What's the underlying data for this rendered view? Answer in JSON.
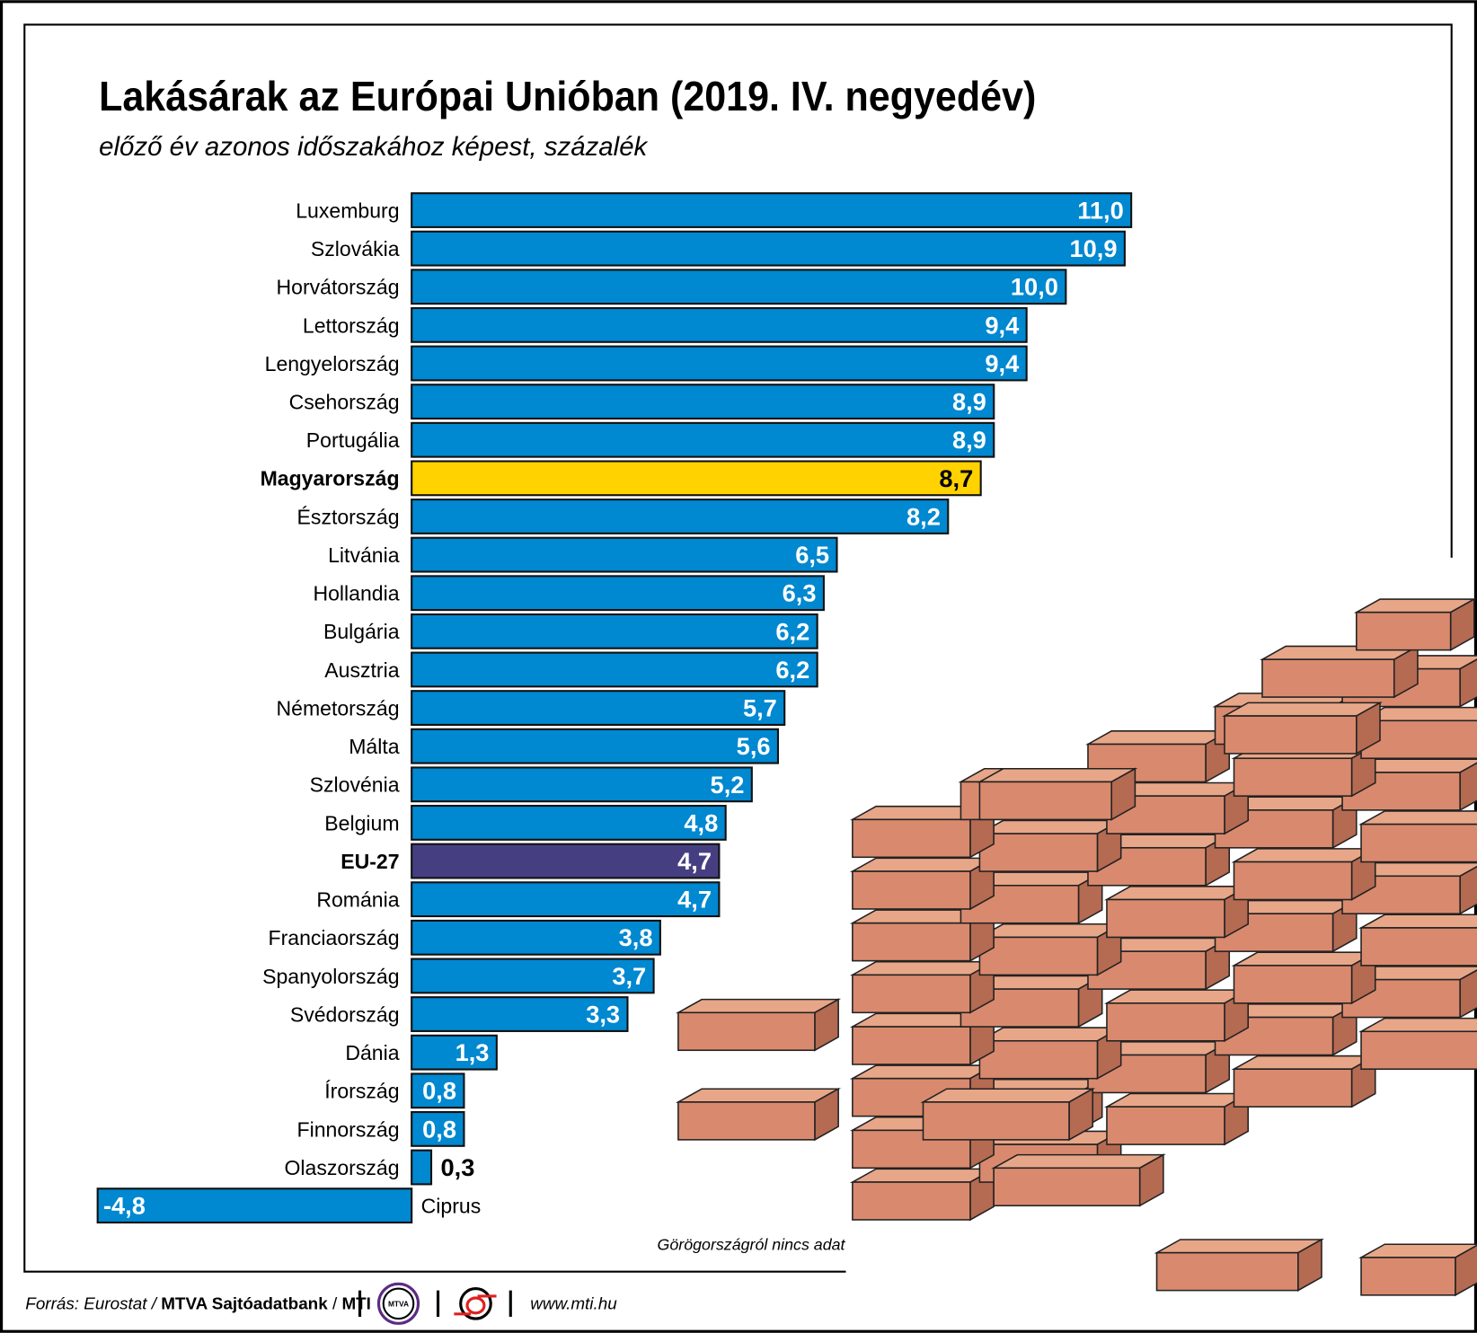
{
  "title": "Lakásárak az Európai Unióban (2019. IV. negyedév)",
  "subtitle": "előző év azonos időszakához képest, százalék",
  "note": "Görögországról nincs adat",
  "footer": {
    "source_prefix": "Forrás: Eurostat / ",
    "source_bold": "MTVA Sajtóadatbank",
    "source_sep": " / ",
    "source_mti": "MTI",
    "logo_mtva": "MTVA",
    "url": "www.mti.hu"
  },
  "colors": {
    "bar": "#0088D1",
    "highlight": "#FFD200",
    "eu": "#453F82",
    "brick": "#D98A6E"
  },
  "chart_data": {
    "type": "bar",
    "orientation": "horizontal",
    "title": "Lakásárak az Európai Unióban (2019. IV. negyedév)",
    "subtitle": "előző év azonos időszakához képest, százalék",
    "categories": [
      "Luxemburg",
      "Szlovákia",
      "Horvátország",
      "Lettország",
      "Lengyelország",
      "Csehország",
      "Portugália",
      "Magyarország",
      "Észtország",
      "Litvánia",
      "Hollandia",
      "Bulgária",
      "Ausztria",
      "Németország",
      "Málta",
      "Szlovénia",
      "Belgium",
      "EU-27",
      "Románia",
      "Franciaország",
      "Spanyolország",
      "Svédország",
      "Dánia",
      "Írország",
      "Finnország",
      "Olaszország",
      "Ciprus"
    ],
    "values": [
      11.0,
      10.9,
      10.0,
      9.4,
      9.4,
      8.9,
      8.9,
      8.7,
      8.2,
      6.5,
      6.3,
      6.2,
      6.2,
      5.7,
      5.6,
      5.2,
      4.8,
      4.7,
      4.7,
      3.8,
      3.7,
      3.3,
      1.3,
      0.8,
      0.8,
      0.3,
      -4.8
    ],
    "value_labels": [
      "11,0",
      "10,9",
      "10,0",
      "9,4",
      "9,4",
      "8,9",
      "8,9",
      "8,7",
      "8,2",
      "6,5",
      "6,3",
      "6,2",
      "6,2",
      "5,7",
      "5,6",
      "5,2",
      "4,8",
      "4,7",
      "4,7",
      "3,8",
      "3,7",
      "3,3",
      "1,3",
      "0,8",
      "0,8",
      "0,3",
      "-4,8"
    ],
    "highlight": {
      "Magyarország": "#FFD200",
      "EU-27": "#453F82"
    },
    "grid": false,
    "legend": "none"
  }
}
